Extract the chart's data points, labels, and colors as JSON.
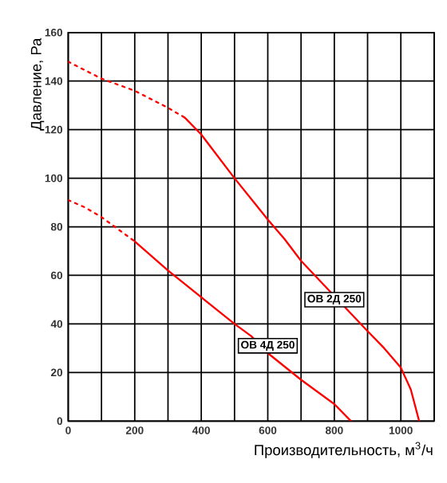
{
  "chart_data": {
    "type": "line",
    "xlabel": "Производительность, м$^{3}$/ч",
    "ylabel": "Давление, Ра",
    "xlim": [
      0,
      1100
    ],
    "ylim": [
      0,
      160
    ],
    "xticks": [
      0,
      {
        "value": 100,
        "label": null
      },
      200,
      {
        "value": 300,
        "label": null
      },
      400,
      {
        "value": 500,
        "label": null
      },
      600,
      {
        "value": 700,
        "label": null
      },
      800,
      {
        "value": 900,
        "label": null
      },
      1000,
      {
        "value": 1100,
        "label": null
      }
    ],
    "yticks": [
      0,
      20,
      40,
      60,
      80,
      100,
      120,
      140,
      160
    ],
    "grid": true,
    "marker": "none",
    "series": [
      {
        "color": "#ff0000",
        "line_style": "dotted",
        "x": [
          0,
          100,
          200,
          300,
          350
        ],
        "values": [
          148,
          141,
          136,
          129,
          125
        ]
      },
      {
        "color": "#ff0000",
        "line_style": "solid",
        "x": [
          350,
          400,
          500,
          600,
          650,
          700,
          800,
          900,
          950,
          1000,
          1030,
          1055
        ],
        "values": [
          125,
          118,
          100,
          83,
          75,
          66,
          null,
          37,
          30,
          22,
          13,
          0
        ]
      },
      {
        "color": "#ff0000",
        "line_style": "dotted",
        "x": [
          0,
          50,
          100,
          150,
          200
        ],
        "values": [
          91,
          88,
          84,
          79,
          74
        ]
      },
      {
        "color": "#ff0000",
        "line_style": "solid",
        "x": [
          200,
          300,
          400,
          500,
          550,
          600,
          700,
          800,
          850
        ],
        "values": [
          74,
          62,
          51,
          40,
          35,
          28,
          17,
          7,
          0
        ]
      }
    ],
    "annotations": [
      {
        "text": "ОВ 2Д 250",
        "x": 800,
        "y": 50
      },
      {
        "text": "ОВ 4Д 250",
        "x": 600,
        "y": 31
      }
    ]
  }
}
